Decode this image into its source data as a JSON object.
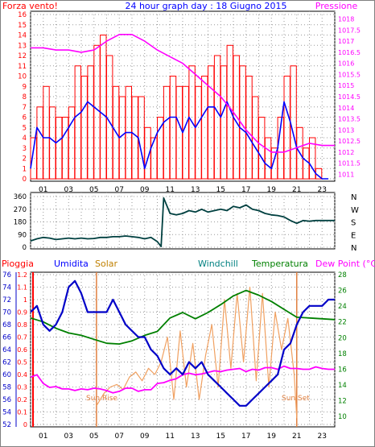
{
  "header": {
    "left_label": "Forza vento!",
    "title": "24 hour graph day : 18 Giugno 2015",
    "right_label": "Pressione"
  },
  "labels": {
    "pioggia": "Pioggia",
    "umidita": "Umidita",
    "solar": "Solar",
    "windchill": "Windchill",
    "temperatura": "Temperatura",
    "dew_point": "Dew Point (°C)",
    "sun_rise": "Sun Rise",
    "sun_set": "Sun Set"
  },
  "colors": {
    "wind_gust": "#ff0000",
    "wind_avg": "#0000ff",
    "pressure": "#ff00ff",
    "direction": "#004040",
    "humidity": "#0000c8",
    "solar": "#f0a060",
    "temperature": "#008000",
    "dewpoint": "#ff00ff",
    "rain_axis": "#ff0000",
    "windchill_label": "#008080",
    "solar_label": "#c08000",
    "sun_marker": "#e08040",
    "grid": "#9a9a9a"
  },
  "x_ticks": [
    "01",
    "03",
    "05",
    "07",
    "09",
    "11",
    "13",
    "15",
    "17",
    "19",
    "21",
    "23"
  ],
  "chart_data": [
    {
      "type": "line",
      "name": "wind-pressure",
      "title": "24 hour graph day : 18 Giugno 2015",
      "x_range": [
        0,
        24
      ],
      "y_left": {
        "label": "Forza vento!",
        "range": [
          0,
          16
        ],
        "ticks": [
          "0",
          "1",
          "2",
          "3",
          "4",
          "5",
          "6",
          "7",
          "8",
          "9",
          "10",
          "11",
          "12",
          "13",
          "14",
          "15",
          "16"
        ]
      },
      "y_right": {
        "label": "Pressione",
        "range": [
          1010.8,
          1018.2
        ],
        "ticks": [
          "1011",
          "1011.5",
          "1012",
          "1012.5",
          "1013",
          "1013.5",
          "1014",
          "1014.5",
          "1015",
          "1015.5",
          "1016",
          "1016.5",
          "1017",
          "1017.5",
          "1018"
        ]
      },
      "series": [
        {
          "key": "gust",
          "axis": "left",
          "x": [
            0,
            0.5,
            1,
            1.5,
            2,
            2.5,
            3,
            3.5,
            4,
            4.5,
            5,
            5.5,
            6,
            6.5,
            7,
            7.5,
            8,
            8.5,
            9,
            9.5,
            10,
            10.5,
            11,
            11.5,
            12,
            12.5,
            13,
            13.5,
            14,
            14.5,
            15,
            15.5,
            16,
            16.5,
            17,
            17.5,
            18,
            18.5,
            19,
            19.5,
            20,
            20.5,
            21,
            21.5,
            22,
            22.5,
            23,
            23.5
          ],
          "values": [
            4,
            7,
            9,
            7,
            6,
            6,
            7,
            11,
            10,
            11,
            13,
            14,
            12,
            9,
            8,
            9,
            8,
            8,
            5,
            4,
            6,
            9,
            10,
            9,
            9,
            11,
            9,
            10,
            11,
            12,
            11,
            13,
            12,
            11,
            10,
            8,
            6,
            4,
            3,
            6,
            10,
            11,
            5,
            3,
            4,
            1,
            0,
            0
          ]
        },
        {
          "key": "average",
          "axis": "left",
          "x": [
            0,
            0.5,
            1,
            1.5,
            2,
            2.5,
            3,
            3.5,
            4,
            4.5,
            5,
            5.5,
            6,
            6.5,
            7,
            7.5,
            8,
            8.5,
            9,
            9.5,
            10,
            10.5,
            11,
            11.5,
            12,
            12.5,
            13,
            13.5,
            14,
            14.5,
            15,
            15.5,
            16,
            16.5,
            17,
            17.5,
            18,
            18.5,
            19,
            19.5,
            20,
            20.5,
            21,
            21.5,
            22,
            22.5,
            23,
            23.5
          ],
          "values": [
            1,
            5,
            4,
            4,
            3.5,
            4,
            5,
            6,
            6.5,
            7.5,
            7,
            6.5,
            6,
            5,
            4,
            4.5,
            4.5,
            4,
            1,
            3,
            4.5,
            5.5,
            6,
            6,
            4.5,
            6,
            5,
            6,
            7,
            7,
            6,
            7.5,
            6,
            5,
            4.5,
            3.5,
            2.5,
            1.5,
            1,
            3,
            7.5,
            5.5,
            3,
            2,
            1.5,
            0.5,
            0,
            0
          ]
        },
        {
          "key": "pressure",
          "axis": "right",
          "x": [
            0,
            1,
            2,
            3,
            4,
            5,
            6,
            7,
            8,
            9,
            10,
            11,
            12,
            13,
            14,
            15,
            16,
            17,
            18,
            19,
            20,
            21,
            22,
            23,
            24
          ],
          "values": [
            1016.7,
            1016.7,
            1016.6,
            1016.6,
            1016.5,
            1016.6,
            1017.0,
            1017.3,
            1017.3,
            1017.0,
            1016.6,
            1016.3,
            1016.0,
            1015.5,
            1015.0,
            1014.5,
            1013.8,
            1013.0,
            1012.4,
            1012.0,
            1012.0,
            1012.2,
            1012.4,
            1012.3,
            1012.3
          ]
        }
      ]
    },
    {
      "type": "line",
      "name": "wind-direction",
      "x_range": [
        0,
        24
      ],
      "y_left": {
        "range": [
          0,
          360
        ],
        "ticks": [
          "0",
          "90",
          "180",
          "270",
          "360"
        ]
      },
      "y_right": {
        "ticks": [
          "N",
          "W",
          "S",
          "E",
          "N"
        ]
      },
      "series": [
        {
          "key": "direction",
          "x": [
            0,
            0.5,
            1,
            1.5,
            2,
            2.5,
            3,
            3.5,
            4,
            4.5,
            5,
            5.5,
            6,
            6.5,
            7,
            7.5,
            8,
            8.5,
            9,
            9.5,
            10,
            10.3,
            10.5,
            11,
            11.5,
            12,
            12.5,
            13,
            13.5,
            14,
            14.5,
            15,
            15.5,
            16,
            16.5,
            17,
            17.5,
            18,
            18.5,
            19,
            19.5,
            20,
            20.5,
            21,
            21.5,
            22,
            22.5,
            23,
            23.5,
            24
          ],
          "values": [
            45,
            60,
            70,
            65,
            55,
            60,
            65,
            60,
            65,
            60,
            62,
            70,
            70,
            75,
            75,
            80,
            75,
            70,
            60,
            70,
            40,
            5,
            350,
            240,
            230,
            240,
            260,
            250,
            270,
            250,
            260,
            270,
            260,
            290,
            280,
            300,
            270,
            260,
            240,
            230,
            225,
            215,
            190,
            170,
            190,
            185,
            190,
            190,
            190,
            190
          ]
        }
      ]
    },
    {
      "type": "line",
      "name": "humidity-temp-solar",
      "x_range": [
        0,
        24
      ],
      "y_left": {
        "label": "Umidita",
        "range": [
          52,
          76
        ],
        "ticks": [
          "52",
          "54",
          "56",
          "58",
          "60",
          "62",
          "64",
          "66",
          "68",
          "70",
          "72",
          "74",
          "76"
        ]
      },
      "y_rain": {
        "label": "Pioggia",
        "range": [
          0,
          1.2
        ],
        "ticks": [
          "0",
          "0.1",
          "0.2",
          "0.3",
          "0.4",
          "0.5",
          "0.6",
          "0.7",
          "0.8",
          "0.9",
          "1",
          "1.1",
          "1.2"
        ]
      },
      "y_right": {
        "label": "Dew Point (°C)",
        "range": [
          9,
          28
        ],
        "ticks": [
          "10",
          "12",
          "14",
          "16",
          "18",
          "20",
          "22",
          "24",
          "26",
          "28"
        ]
      },
      "sun_rise_x": 5.2,
      "sun_set_x": 21.0,
      "series": [
        {
          "key": "humidity",
          "x": [
            0,
            0.5,
            1,
            1.5,
            2,
            2.5,
            3,
            3.5,
            4,
            4.5,
            5,
            5.5,
            6,
            6.5,
            7,
            7.5,
            8,
            8.5,
            9,
            9.5,
            10,
            10.5,
            11,
            11.5,
            12,
            12.5,
            13,
            13.5,
            14,
            14.5,
            15,
            15.5,
            16,
            16.5,
            17,
            17.5,
            18,
            18.5,
            19,
            19.5,
            20,
            20.5,
            21,
            21.5,
            22,
            22.5,
            23,
            23.5,
            24
          ],
          "values": [
            70,
            71,
            68,
            67,
            68,
            70,
            74,
            75,
            73,
            70,
            70,
            70,
            70,
            72,
            70,
            68,
            67,
            66,
            66,
            64,
            63,
            61,
            60,
            61,
            60,
            62,
            61,
            62,
            60,
            59,
            58,
            57,
            56,
            55,
            55,
            56,
            57,
            58,
            59,
            60,
            64,
            65,
            68,
            70,
            71,
            71,
            71,
            72,
            72
          ]
        },
        {
          "key": "temperature",
          "x": [
            0,
            1,
            2,
            3,
            4,
            5,
            6,
            7,
            8,
            9,
            10,
            11,
            12,
            13,
            14,
            15,
            16,
            17,
            18,
            19,
            20,
            21,
            22,
            23,
            24
          ],
          "values": [
            22.5,
            22,
            21.2,
            20.6,
            20.3,
            19.8,
            19.3,
            19.2,
            19.6,
            20.3,
            20.8,
            22.5,
            23.2,
            22.4,
            23.2,
            24.2,
            25.3,
            26.0,
            25.4,
            24.6,
            23.6,
            22.6,
            22.5,
            22.4,
            22.3
          ]
        },
        {
          "key": "solar",
          "x": [
            5.2,
            5.8,
            6.3,
            6.8,
            7.3,
            7.8,
            8.3,
            8.8,
            9.3,
            9.8,
            10.3,
            10.8,
            11.3,
            11.8,
            12.3,
            12.8,
            13.3,
            13.8,
            14.3,
            14.8,
            15.3,
            15.8,
            16.3,
            16.8,
            17.3,
            17.8,
            18.3,
            18.8,
            19.3,
            19.8,
            20.3,
            20.8,
            21.0
          ],
          "values": [
            0.15,
            0.25,
            0.3,
            0.32,
            0.28,
            0.38,
            0.42,
            0.35,
            0.45,
            0.4,
            0.5,
            0.7,
            0.2,
            0.75,
            0.3,
            0.65,
            0.2,
            0.55,
            0.8,
            0.3,
            1.0,
            0.45,
            1.05,
            0.5,
            1.1,
            0.35,
            1.05,
            0.3,
            0.9,
            0.6,
            0.85,
            0.4,
            0.05
          ]
        },
        {
          "key": "dewpoint",
          "x": [
            0,
            0.5,
            1,
            1.5,
            2,
            2.5,
            3,
            3.5,
            4,
            4.5,
            5,
            5.5,
            6,
            6.5,
            7,
            7.5,
            8,
            8.5,
            9,
            9.5,
            10,
            10.5,
            11,
            11.5,
            12,
            12.5,
            13,
            13.5,
            14,
            14.5,
            15,
            15.5,
            16,
            16.5,
            17,
            17.5,
            18,
            18.5,
            19,
            19.5,
            20,
            20.5,
            21,
            21.5,
            22,
            22.5,
            23,
            23.5,
            24
          ],
          "values": [
            15,
            15.3,
            14.2,
            13.7,
            13.8,
            13.5,
            13.5,
            13.3,
            13.5,
            13.4,
            13.6,
            13.5,
            13.3,
            13,
            13.2,
            13.6,
            13.6,
            13.2,
            13.4,
            13.4,
            14.2,
            14.3,
            14.6,
            14.8,
            15.3,
            15.5,
            15.3,
            15.4,
            15.6,
            15.8,
            15.7,
            15.9,
            16,
            16.1,
            15.7,
            16,
            15.9,
            16.2,
            16.2,
            16,
            16.4,
            16.1,
            16.1,
            16,
            16,
            16.3,
            16.1,
            16,
            16
          ]
        }
      ]
    }
  ]
}
